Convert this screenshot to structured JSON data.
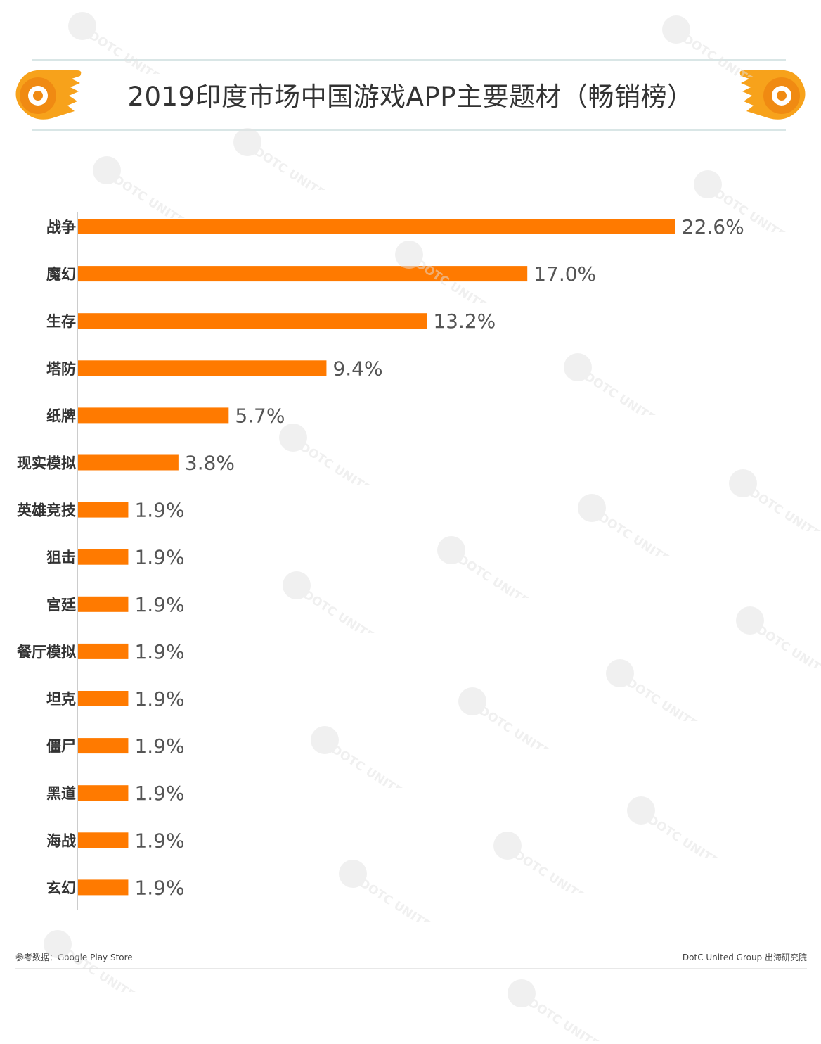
{
  "title": "2019印度市场中国游戏APP主要题材（畅销榜）",
  "source": "参考数据：Google Play Store",
  "brand": "DotC United Group  出海研究院",
  "watermark_text": "DOTC UNITED",
  "colors": {
    "bar": "#ff7a00",
    "accent": "#f7a21b",
    "axis": "#cccccc"
  },
  "chart_data": {
    "type": "bar",
    "orientation": "horizontal",
    "title": "2019印度市场中国游戏APP主要题材（畅销榜）",
    "categories": [
      "战争",
      "魔幻",
      "生存",
      "塔防",
      "纸牌",
      "现实模拟",
      "英雄竞技",
      "狙击",
      "宫廷",
      "餐厅模拟",
      "坦克",
      "僵尸",
      "黑道",
      "海战",
      "玄幻"
    ],
    "values": [
      22.6,
      17.0,
      13.2,
      9.4,
      5.7,
      3.8,
      1.9,
      1.9,
      1.9,
      1.9,
      1.9,
      1.9,
      1.9,
      1.9,
      1.9
    ],
    "value_labels": [
      "22.6%",
      "17.0%",
      "13.2%",
      "9.4%",
      "5.7%",
      "3.8%",
      "1.9%",
      "1.9%",
      "1.9%",
      "1.9%",
      "1.9%",
      "1.9%",
      "1.9%",
      "1.9%",
      "1.9%"
    ],
    "unit": "%",
    "xlim": [
      0,
      25
    ],
    "grid": false,
    "legend": "none"
  }
}
